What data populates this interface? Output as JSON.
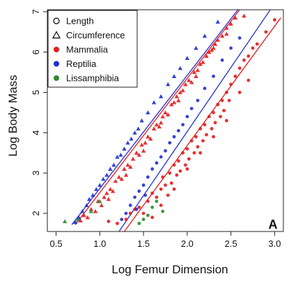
{
  "chart_data": {
    "type": "scatter",
    "xlabel": "Log Femur Dimension",
    "ylabel": "Log Body Mass",
    "panel_label": "A",
    "xlim": [
      0.4,
      3.1
    ],
    "ylim": [
      1.55,
      7.05
    ],
    "xticks": [
      0.5,
      1.0,
      1.5,
      2.0,
      2.5,
      3.0
    ],
    "xtick_labels": [
      "0.5",
      "1.0",
      "1.5",
      "2.0",
      "2.5",
      "3.0"
    ],
    "yticks": [
      2,
      3,
      4,
      5,
      6,
      7
    ],
    "ytick_labels": [
      "2",
      "3",
      "4",
      "5",
      "6",
      "7"
    ],
    "legend_position": "top-left",
    "legend": [
      {
        "label": "Length",
        "marker": "circle-open",
        "color": "#000000"
      },
      {
        "label": "Circumference",
        "marker": "triangle-open",
        "color": "#000000"
      },
      {
        "label": "Mammalia",
        "marker": "circle",
        "color": "#e31a1c"
      },
      {
        "label": "Reptilia",
        "marker": "circle",
        "color": "#1f2fd6"
      },
      {
        "label": "Lissamphibia",
        "marker": "circle",
        "color": "#2e8b2e"
      }
    ],
    "colors": {
      "Mammalia": "#e31a1c",
      "Reptilia": "#1f2fd6",
      "Lissamphibia": "#2e8b2e"
    },
    "fit_lines": [
      {
        "group": "Circumference",
        "taxon": "Mammalia",
        "x": [
          0.72,
          2.6
        ],
        "y": [
          1.72,
          7.05
        ],
        "color": "#e31a1c"
      },
      {
        "group": "Circumference",
        "taxon": "Reptilia",
        "x": [
          0.68,
          2.58
        ],
        "y": [
          1.72,
          7.05
        ],
        "color": "#1f2fd6"
      },
      {
        "group": "Length",
        "taxon": "Mammalia",
        "x": [
          1.28,
          3.07
        ],
        "y": [
          1.55,
          6.85
        ],
        "color": "#e31a1c"
      },
      {
        "group": "Length",
        "taxon": "Reptilia",
        "x": [
          1.22,
          2.95
        ],
        "y": [
          1.55,
          7.05
        ],
        "color": "#1f2fd6"
      }
    ],
    "series": [
      {
        "taxon": "Mammalia",
        "measure": "Circumference",
        "marker": "triangle",
        "points": [
          [
            0.78,
            1.82
          ],
          [
            0.82,
            1.95
          ],
          [
            0.86,
            1.9
          ],
          [
            0.9,
            2.1
          ],
          [
            0.95,
            2.05
          ],
          [
            0.98,
            2.3
          ],
          [
            1.02,
            2.2
          ],
          [
            1.05,
            2.4
          ],
          [
            1.08,
            2.5
          ],
          [
            1.12,
            2.6
          ],
          [
            1.15,
            2.55
          ],
          [
            1.18,
            2.8
          ],
          [
            1.22,
            2.9
          ],
          [
            1.25,
            2.85
          ],
          [
            1.28,
            3.1
          ],
          [
            1.32,
            3.2
          ],
          [
            1.35,
            3.15
          ],
          [
            1.38,
            3.35
          ],
          [
            1.42,
            3.5
          ],
          [
            1.45,
            3.45
          ],
          [
            1.48,
            3.7
          ],
          [
            1.52,
            3.75
          ],
          [
            1.55,
            3.9
          ],
          [
            1.58,
            3.85
          ],
          [
            1.62,
            4.1
          ],
          [
            1.65,
            4.2
          ],
          [
            1.68,
            4.15
          ],
          [
            1.72,
            4.4
          ],
          [
            1.75,
            4.5
          ],
          [
            1.78,
            4.45
          ],
          [
            1.82,
            4.7
          ],
          [
            1.85,
            4.75
          ],
          [
            1.88,
            4.9
          ],
          [
            1.92,
            5.0
          ],
          [
            1.95,
            5.05
          ],
          [
            1.98,
            5.2
          ],
          [
            2.02,
            5.3
          ],
          [
            2.05,
            5.25
          ],
          [
            2.08,
            5.5
          ],
          [
            2.12,
            5.55
          ],
          [
            2.15,
            5.7
          ],
          [
            2.18,
            5.75
          ],
          [
            2.22,
            5.9
          ],
          [
            2.25,
            6.0
          ],
          [
            2.28,
            6.05
          ],
          [
            2.32,
            6.2
          ],
          [
            2.35,
            6.3
          ],
          [
            2.4,
            6.4
          ],
          [
            2.45,
            6.6
          ],
          [
            2.5,
            6.7
          ],
          [
            1.1,
            2.35
          ],
          [
            1.3,
            2.95
          ],
          [
            1.5,
            3.55
          ],
          [
            1.7,
            4.25
          ],
          [
            1.9,
            4.8
          ],
          [
            2.1,
            5.4
          ],
          [
            2.3,
            6.1
          ],
          [
            2.55,
            6.85
          ],
          [
            2.65,
            6.9
          ],
          [
            2.45,
            6.45
          ]
        ]
      },
      {
        "taxon": "Mammalia",
        "measure": "Length",
        "marker": "circle",
        "points": [
          [
            1.1,
            1.8
          ],
          [
            1.2,
            1.75
          ],
          [
            1.3,
            1.85
          ],
          [
            1.35,
            2.0
          ],
          [
            1.4,
            2.1
          ],
          [
            1.45,
            2.15
          ],
          [
            1.5,
            2.0
          ],
          [
            1.55,
            2.3
          ],
          [
            1.6,
            2.5
          ],
          [
            1.65,
            2.4
          ],
          [
            1.7,
            2.6
          ],
          [
            1.72,
            2.9
          ],
          [
            1.75,
            2.7
          ],
          [
            1.8,
            3.0
          ],
          [
            1.82,
            2.75
          ],
          [
            1.85,
            3.2
          ],
          [
            1.88,
            2.95
          ],
          [
            1.9,
            3.3
          ],
          [
            1.92,
            3.05
          ],
          [
            1.95,
            3.5
          ],
          [
            1.98,
            3.2
          ],
          [
            2.0,
            3.6
          ],
          [
            2.02,
            3.35
          ],
          [
            2.05,
            3.8
          ],
          [
            2.08,
            3.5
          ],
          [
            2.1,
            3.9
          ],
          [
            2.12,
            3.65
          ],
          [
            2.15,
            4.1
          ],
          [
            2.18,
            3.8
          ],
          [
            2.2,
            4.2
          ],
          [
            2.22,
            3.95
          ],
          [
            2.25,
            4.4
          ],
          [
            2.28,
            4.1
          ],
          [
            2.3,
            4.5
          ],
          [
            2.32,
            4.25
          ],
          [
            2.35,
            4.7
          ],
          [
            2.38,
            4.4
          ],
          [
            2.4,
            4.8
          ],
          [
            2.42,
            4.55
          ],
          [
            2.45,
            5.0
          ],
          [
            2.48,
            4.8
          ],
          [
            2.5,
            5.2
          ],
          [
            2.55,
            5.4
          ],
          [
            2.6,
            5.6
          ],
          [
            2.65,
            5.8
          ],
          [
            2.7,
            5.9
          ],
          [
            2.75,
            6.1
          ],
          [
            2.8,
            6.2
          ],
          [
            2.9,
            6.5
          ],
          [
            3.0,
            6.8
          ],
          [
            1.6,
            1.9
          ],
          [
            1.7,
            2.2
          ],
          [
            1.78,
            2.45
          ],
          [
            1.85,
            2.6
          ],
          [
            2.0,
            3.1
          ],
          [
            2.15,
            3.5
          ],
          [
            2.3,
            3.9
          ],
          [
            2.45,
            4.3
          ],
          [
            2.6,
            5.0
          ],
          [
            2.7,
            5.3
          ]
        ]
      },
      {
        "taxon": "Reptilia",
        "measure": "Circumference",
        "marker": "triangle",
        "points": [
          [
            0.72,
            1.78
          ],
          [
            0.76,
            1.9
          ],
          [
            0.8,
            2.05
          ],
          [
            0.85,
            2.2
          ],
          [
            0.88,
            2.35
          ],
          [
            0.92,
            2.45
          ],
          [
            0.96,
            2.6
          ],
          [
            1.0,
            2.7
          ],
          [
            1.04,
            2.85
          ],
          [
            1.08,
            2.95
          ],
          [
            1.12,
            3.1
          ],
          [
            1.16,
            3.2
          ],
          [
            1.2,
            3.4
          ],
          [
            1.24,
            3.45
          ],
          [
            1.28,
            3.6
          ],
          [
            1.32,
            3.75
          ],
          [
            1.36,
            3.85
          ],
          [
            1.4,
            4.0
          ],
          [
            1.44,
            4.1
          ],
          [
            1.48,
            4.3
          ],
          [
            1.55,
            4.5
          ],
          [
            1.62,
            4.75
          ],
          [
            1.7,
            4.9
          ],
          [
            1.78,
            5.2
          ],
          [
            1.85,
            5.4
          ],
          [
            1.92,
            5.6
          ],
          [
            2.0,
            5.85
          ],
          [
            2.1,
            6.1
          ],
          [
            2.2,
            6.4
          ],
          [
            2.35,
            6.75
          ]
        ]
      },
      {
        "taxon": "Reptilia",
        "measure": "Length",
        "marker": "circle",
        "points": [
          [
            1.25,
            1.85
          ],
          [
            1.3,
            2.0
          ],
          [
            1.35,
            2.2
          ],
          [
            1.4,
            2.4
          ],
          [
            1.45,
            2.55
          ],
          [
            1.5,
            2.7
          ],
          [
            1.55,
            2.9
          ],
          [
            1.6,
            3.1
          ],
          [
            1.65,
            3.25
          ],
          [
            1.7,
            3.4
          ],
          [
            1.75,
            3.55
          ],
          [
            1.8,
            3.75
          ],
          [
            1.85,
            3.9
          ],
          [
            1.9,
            4.05
          ],
          [
            1.95,
            4.2
          ],
          [
            2.0,
            4.4
          ],
          [
            2.05,
            4.6
          ],
          [
            2.12,
            4.8
          ],
          [
            2.2,
            5.1
          ],
          [
            2.3,
            5.4
          ],
          [
            2.4,
            5.8
          ],
          [
            2.5,
            6.1
          ],
          [
            2.6,
            6.35
          ],
          [
            1.42,
            2.1
          ],
          [
            1.52,
            2.45
          ]
        ]
      },
      {
        "taxon": "Lissamphibia",
        "measure": "Circumference",
        "marker": "triangle",
        "points": [
          [
            0.6,
            1.8
          ],
          [
            0.75,
            1.85
          ],
          [
            0.9,
            2.05
          ],
          [
            1.0,
            2.3
          ]
        ]
      },
      {
        "taxon": "Lissamphibia",
        "measure": "Length",
        "marker": "circle",
        "points": [
          [
            1.45,
            1.75
          ],
          [
            1.55,
            1.95
          ],
          [
            1.6,
            2.15
          ],
          [
            1.65,
            2.3
          ],
          [
            1.72,
            2.05
          ],
          [
            1.5,
            1.85
          ]
        ]
      }
    ]
  }
}
